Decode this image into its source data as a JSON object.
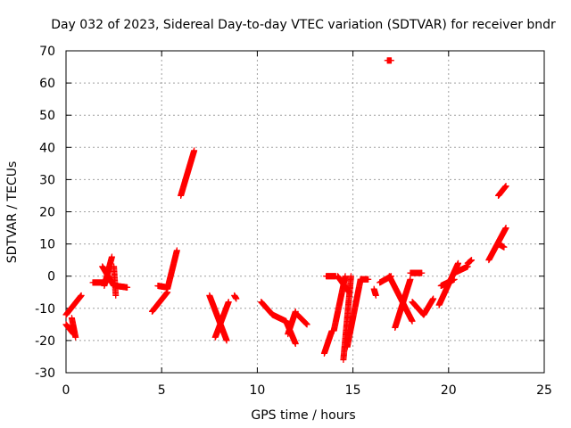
{
  "chart_data": {
    "type": "scatter",
    "title": "Day 032 of 2023, Sidereal Day-to-day VTEC variation (SDTVAR) for receiver bndr",
    "xlabel": "GPS time / hours",
    "ylabel": "SDTVAR / TECUs",
    "xlim": [
      0,
      25
    ],
    "ylim": [
      -30,
      70
    ],
    "xticks": [
      "0",
      "5",
      "10",
      "15",
      "20",
      "25"
    ],
    "yticks": [
      "-30",
      "-20",
      "-10",
      "0",
      "10",
      "20",
      "30",
      "40",
      "50",
      "60",
      "70"
    ],
    "grid": true,
    "marker": "+",
    "color": "#ff0000",
    "segments": [
      {
        "x": [
          0.0,
          0.4
        ],
        "y": [
          -15,
          -18
        ]
      },
      {
        "x": [
          0.3,
          0.5
        ],
        "y": [
          -13,
          -19
        ]
      },
      {
        "x": [
          0.0,
          0.8
        ],
        "y": [
          -12,
          -6
        ]
      },
      {
        "x": [
          1.4,
          2.1
        ],
        "y": [
          -2,
          -2
        ]
      },
      {
        "x": [
          1.9,
          2.5
        ],
        "y": [
          3,
          -3
        ]
      },
      {
        "x": [
          2.0,
          2.4
        ],
        "y": [
          -3,
          6
        ]
      },
      {
        "x": [
          2.5,
          2.6
        ],
        "y": [
          3,
          -6
        ]
      },
      {
        "x": [
          2.6,
          3.2
        ],
        "y": [
          -3,
          -3.5
        ]
      },
      {
        "x": [
          4.5,
          5.3
        ],
        "y": [
          -11,
          -5
        ]
      },
      {
        "x": [
          4.8,
          5.3
        ],
        "y": [
          -3,
          -3.5
        ]
      },
      {
        "x": [
          5.3,
          5.8
        ],
        "y": [
          -4,
          8
        ]
      },
      {
        "x": [
          6.0,
          6.7
        ],
        "y": [
          25,
          39
        ]
      },
      {
        "x": [
          7.5,
          8.4
        ],
        "y": [
          -6,
          -20
        ]
      },
      {
        "x": [
          7.8,
          8.5
        ],
        "y": [
          -19,
          -8
        ]
      },
      {
        "x": [
          8.8,
          8.9
        ],
        "y": [
          -6,
          -7
        ]
      },
      {
        "x": [
          10.2,
          10.8
        ],
        "y": [
          -8,
          -12
        ]
      },
      {
        "x": [
          10.8,
          11.5
        ],
        "y": [
          -12,
          -14
        ]
      },
      {
        "x": [
          11.5,
          12.0
        ],
        "y": [
          -14,
          -21
        ]
      },
      {
        "x": [
          11.6,
          12.0
        ],
        "y": [
          -18,
          -11
        ]
      },
      {
        "x": [
          12.1,
          12.6
        ],
        "y": [
          -12,
          -15
        ]
      },
      {
        "x": [
          13.5,
          13.9
        ],
        "y": [
          -24,
          -17
        ]
      },
      {
        "x": [
          13.6,
          14.1
        ],
        "y": [
          0,
          0
        ]
      },
      {
        "x": [
          14.0,
          14.6
        ],
        "y": [
          -17,
          0
        ]
      },
      {
        "x": [
          14.2,
          14.8
        ],
        "y": [
          0,
          -5
        ]
      },
      {
        "x": [
          14.5,
          14.9
        ],
        "y": [
          -26,
          0
        ]
      },
      {
        "x": [
          14.7,
          15.4
        ],
        "y": [
          -22,
          -1
        ]
      },
      {
        "x": [
          15.4,
          15.8
        ],
        "y": [
          -1,
          -1
        ]
      },
      {
        "x": [
          16.1,
          16.2
        ],
        "y": [
          -4,
          -6
        ]
      },
      {
        "x": [
          16.4,
          17.0
        ],
        "y": [
          -2,
          0
        ]
      },
      {
        "x": [
          16.8,
          17.0
        ],
        "y": [
          67,
          67
        ]
      },
      {
        "x": [
          16.9,
          18.1
        ],
        "y": [
          0,
          -14
        ]
      },
      {
        "x": [
          17.2,
          18.0
        ],
        "y": [
          -16,
          -1
        ]
      },
      {
        "x": [
          18.0,
          18.6
        ],
        "y": [
          1,
          1
        ]
      },
      {
        "x": [
          18.1,
          18.7
        ],
        "y": [
          -8,
          -12
        ]
      },
      {
        "x": [
          18.7,
          19.2
        ],
        "y": [
          -12,
          -7
        ]
      },
      {
        "x": [
          19.5,
          20.5
        ],
        "y": [
          -9,
          4
        ]
      },
      {
        "x": [
          19.6,
          20.3
        ],
        "y": [
          -3,
          -1
        ]
      },
      {
        "x": [
          20.3,
          21.0
        ],
        "y": [
          1,
          3
        ]
      },
      {
        "x": [
          21.0,
          21.2
        ],
        "y": [
          4,
          5
        ]
      },
      {
        "x": [
          22.1,
          23.0
        ],
        "y": [
          5,
          15
        ]
      },
      {
        "x": [
          22.6,
          22.9
        ],
        "y": [
          10,
          9
        ]
      },
      {
        "x": [
          22.6,
          23.0
        ],
        "y": [
          25,
          28
        ]
      }
    ]
  }
}
